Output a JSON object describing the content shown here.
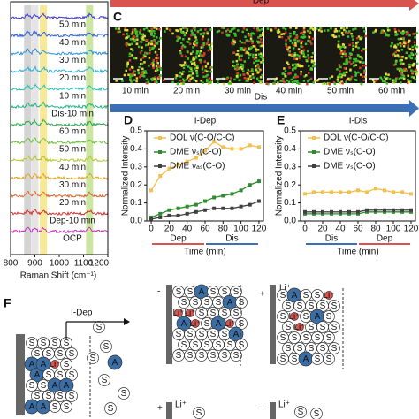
{
  "panel_labels": {
    "C": "C",
    "D": "D",
    "E": "E",
    "F": "F"
  },
  "top_arrows": {
    "dep": "Dep",
    "dis": "Dis"
  },
  "raman": {
    "x_label": "Raman Shift (cm⁻¹)",
    "xlim": [
      800,
      1200
    ],
    "xticks": [
      800,
      900,
      1000,
      1100,
      1200
    ],
    "bands": [
      {
        "center": 870,
        "color": "#c9c9c9"
      },
      {
        "center": 900,
        "color": "#dedede"
      },
      {
        "center": 935,
        "color": "#f7e27a"
      },
      {
        "center": 1125,
        "color": "#bfe08a"
      }
    ],
    "spectra": [
      {
        "name": "50 min",
        "color": "#3b3bd6"
      },
      {
        "name": "40 min",
        "color": "#2d62d8"
      },
      {
        "name": "30 min",
        "color": "#2b8fd9"
      },
      {
        "name": "20 min",
        "color": "#27b3d6"
      },
      {
        "name": "10 min",
        "color": "#24c4b8"
      },
      {
        "name": "Dis-10 min",
        "color": "#1fb38a"
      },
      {
        "name": "60 min",
        "color": "#2aa84f"
      },
      {
        "name": "50 min",
        "color": "#6bbf3a"
      },
      {
        "name": "40 min",
        "color": "#b5c52f"
      },
      {
        "name": "30 min",
        "color": "#e0a22a"
      },
      {
        "name": "20 min",
        "color": "#e0662a"
      },
      {
        "name": "Dep-10 min",
        "color": "#d6302a"
      },
      {
        "name": "OCP",
        "color": "#c22fb8"
      }
    ]
  },
  "images": {
    "labels": [
      "10 min",
      "20 min",
      "30 min",
      "40 min",
      "50 min",
      "60 min"
    ]
  },
  "chart_data": [
    {
      "type": "line",
      "title": "I-Dep",
      "y_label": "Normalized Intensity",
      "x_label": "Time (min)",
      "x": [
        0,
        10,
        20,
        30,
        40,
        50,
        60,
        70,
        80,
        90,
        100,
        110,
        120
      ],
      "xlim": [
        -5,
        125
      ],
      "xticks": [
        0,
        20,
        40,
        60,
        80,
        100,
        120
      ],
      "ylim": [
        0,
        0.5
      ],
      "yticks": [
        {
          "value": 0,
          "label": "0.0"
        },
        0.1,
        0.2,
        0.3,
        0.4,
        0.5
      ],
      "periods": [
        {
          "label": "Dep",
          "from": 0,
          "to": 60,
          "color": "#d9534f"
        },
        {
          "label": "Dis",
          "from": 60,
          "to": 120,
          "color": "#3a6fb5"
        }
      ],
      "series": [
        {
          "name": "DOL ν(C-O/C-C)",
          "color": "#f5c04a",
          "values": [
            0.17,
            0.25,
            0.29,
            0.31,
            0.33,
            0.35,
            0.39,
            0.44,
            0.41,
            0.4,
            0.4,
            0.42,
            0.41
          ]
        },
        {
          "name": "DME νₛ(C-O)",
          "color": "#2e8b2e",
          "values": [
            0.02,
            0.04,
            0.06,
            0.07,
            0.08,
            0.09,
            0.11,
            0.13,
            0.14,
            0.15,
            0.17,
            0.2,
            0.22
          ]
        },
        {
          "name": "DME νₐₛ(C-O)",
          "color": "#404040",
          "values": [
            0.01,
            0.02,
            0.03,
            0.03,
            0.04,
            0.05,
            0.06,
            0.07,
            0.07,
            0.07,
            0.08,
            0.09,
            0.11
          ]
        }
      ]
    },
    {
      "type": "line",
      "title": "I-Dis",
      "y_label": "Normalized Intensity",
      "x_label": "Time (min)",
      "x": [
        0,
        10,
        20,
        30,
        40,
        50,
        60,
        70,
        80,
        90,
        100,
        110,
        120
      ],
      "xlim": [
        -5,
        125
      ],
      "xticks": [
        0,
        20,
        40,
        60,
        80,
        100,
        120
      ],
      "ylim": [
        0,
        0.5
      ],
      "yticks": [
        {
          "value": 0,
          "label": "0.0"
        },
        0.1,
        0.2,
        0.3,
        0.4,
        0.5
      ],
      "periods": [
        {
          "label": "Dis",
          "from": 0,
          "to": 60,
          "color": "#3a6fb5"
        },
        {
          "label": "Dep",
          "from": 60,
          "to": 120,
          "color": "#d9534f"
        }
      ],
      "series": [
        {
          "name": "DOL ν(C-O/C-C)",
          "color": "#f5c04a",
          "values": [
            0.15,
            0.16,
            0.16,
            0.16,
            0.16,
            0.16,
            0.17,
            0.16,
            0.18,
            0.17,
            0.16,
            0.16,
            0.15
          ]
        },
        {
          "name": "DME νₛ(C-O)",
          "color": "#2e8b2e",
          "values": [
            0.04,
            0.04,
            0.04,
            0.04,
            0.04,
            0.04,
            0.04,
            0.05,
            0.05,
            0.05,
            0.05,
            0.05,
            0.05
          ]
        },
        {
          "name": "DME νₛ(C-O)",
          "color": "#404040",
          "values": [
            0.05,
            0.05,
            0.05,
            0.05,
            0.05,
            0.05,
            0.05,
            0.06,
            0.06,
            0.06,
            0.06,
            0.06,
            0.06
          ]
        }
      ]
    }
  ],
  "diagram": {
    "label": "I-Dep",
    "solvent": "S",
    "anion": "A",
    "lithium": "Li⁺",
    "minus": "-",
    "plus": "+"
  }
}
